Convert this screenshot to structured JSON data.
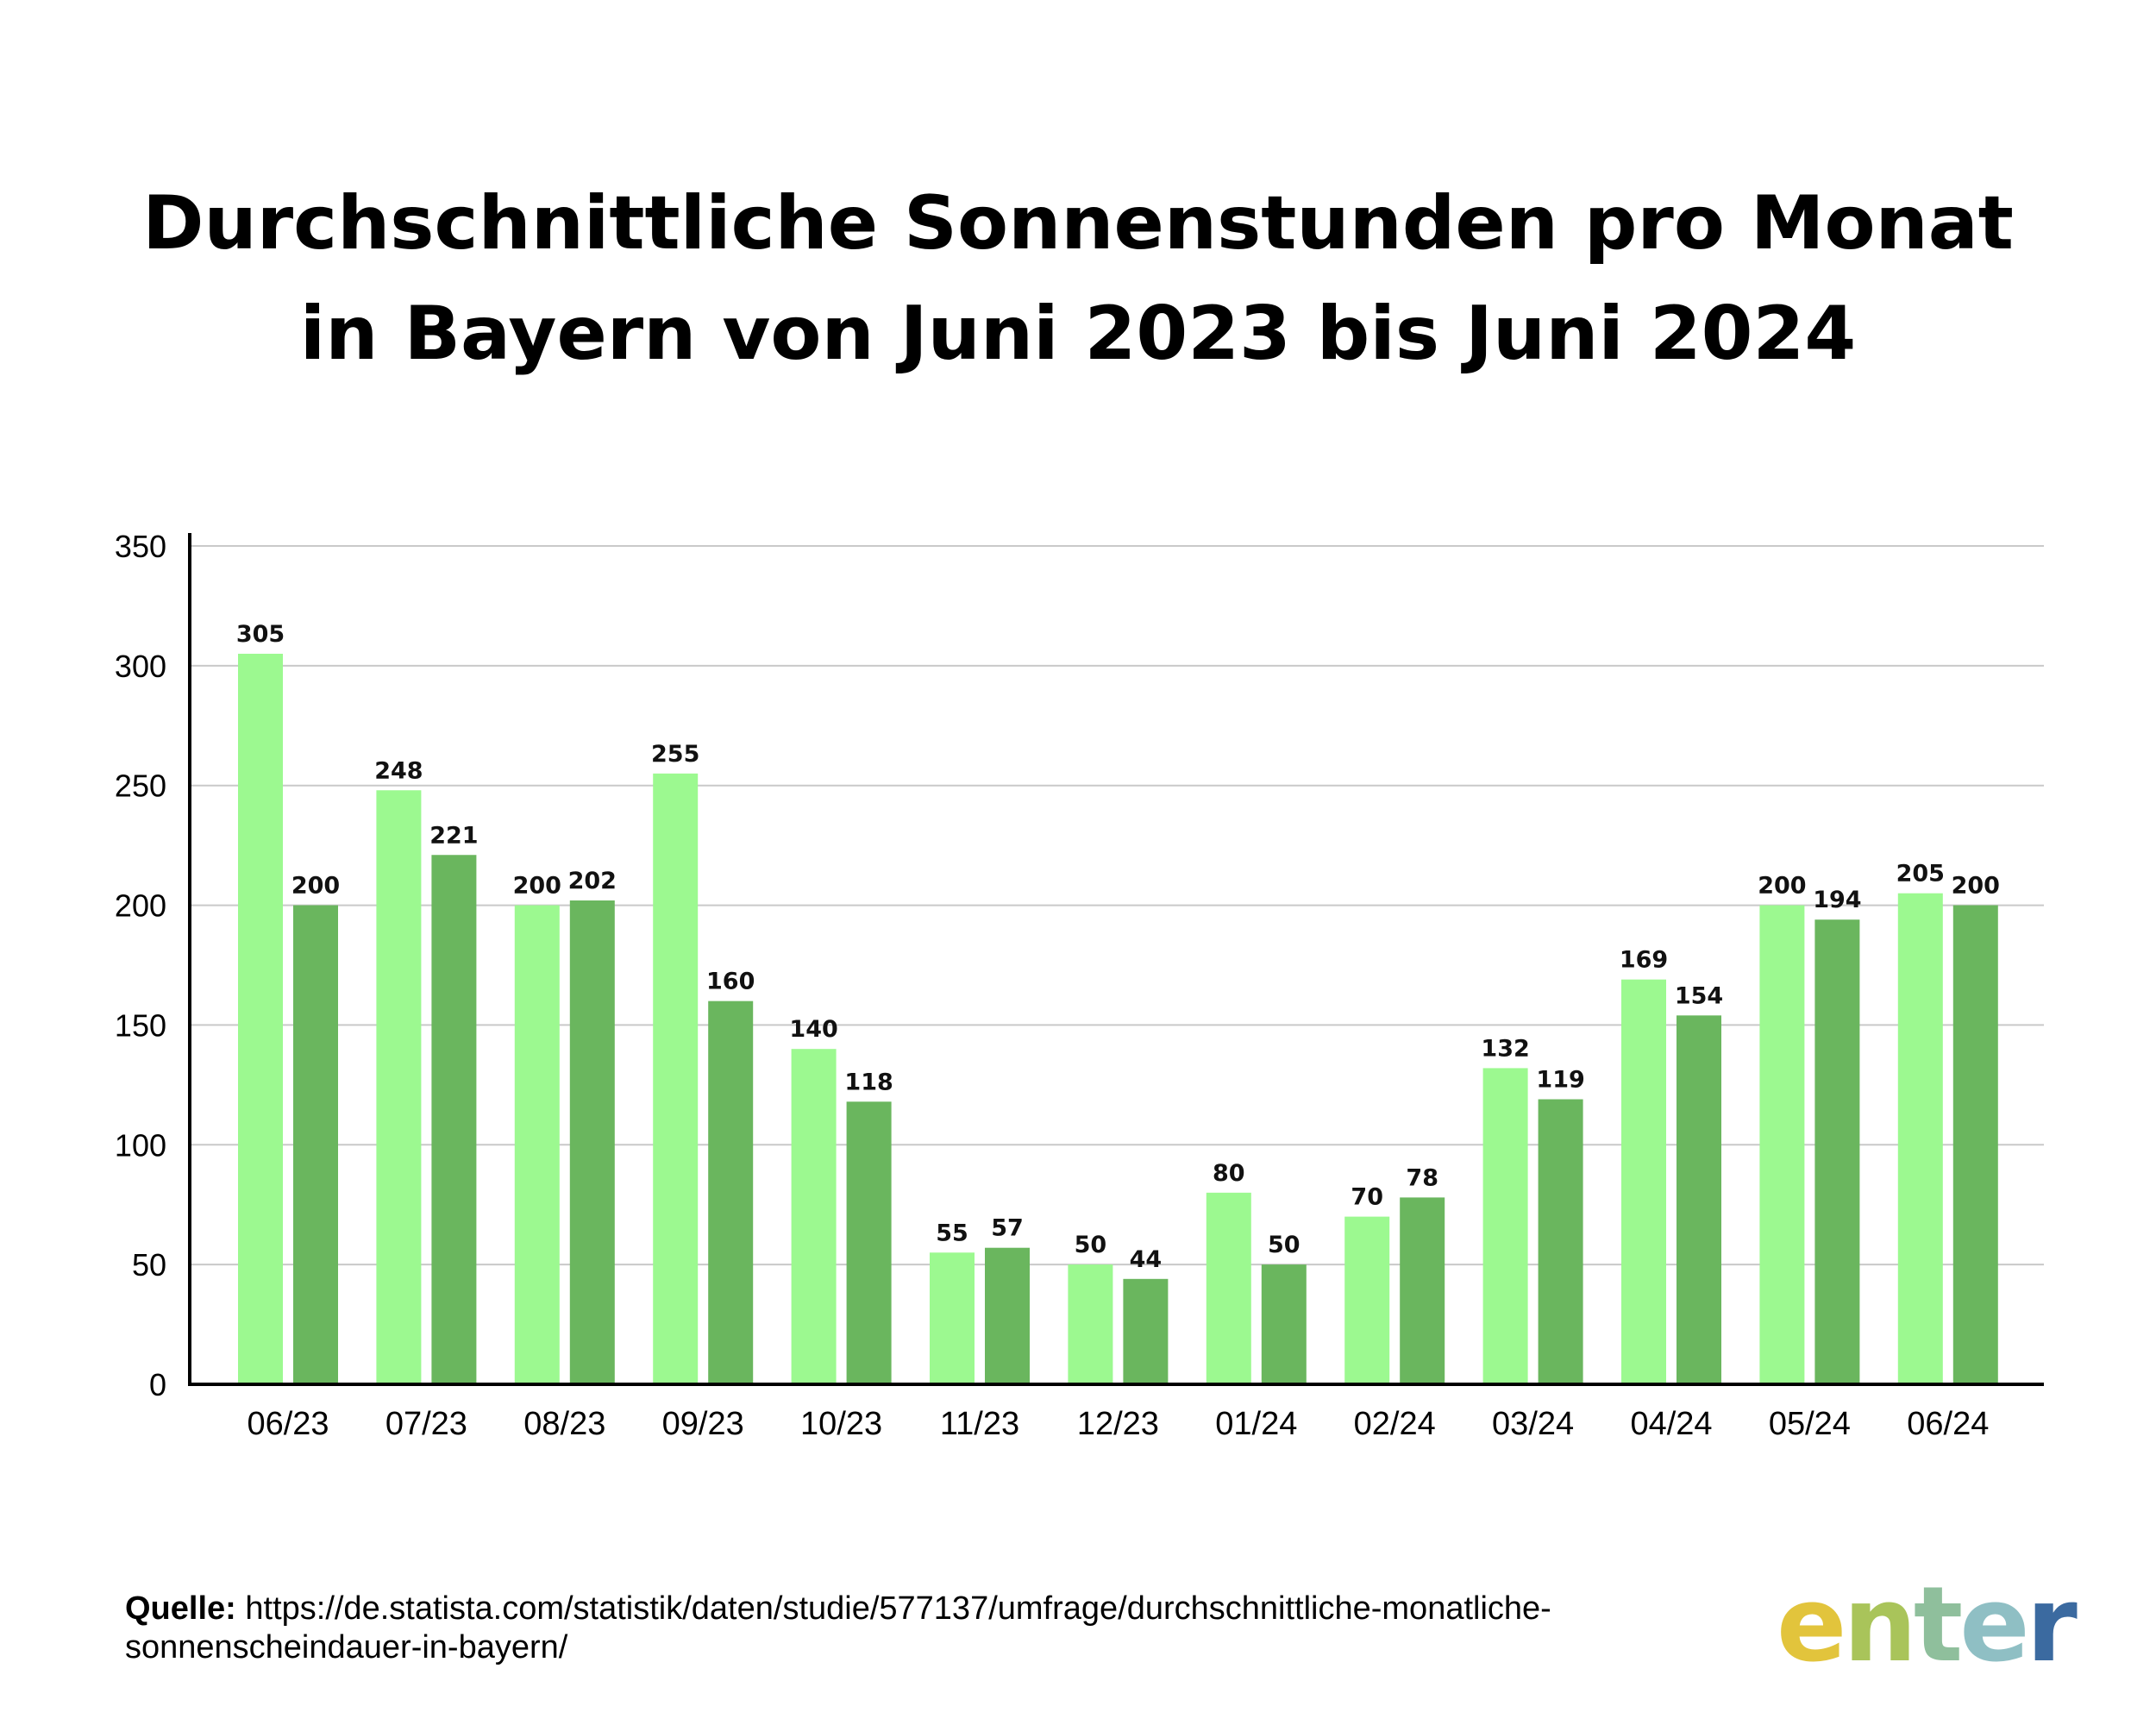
{
  "title": {
    "line1": "Durchschnittliche Sonnenstunden pro Monat",
    "line2": "in Bayern von Juni 2023 bis Juni 2024"
  },
  "chart_data": {
    "type": "bar",
    "categories": [
      "06/23",
      "07/23",
      "08/23",
      "09/23",
      "10/23",
      "11/23",
      "12/23",
      "01/24",
      "02/24",
      "03/24",
      "04/24",
      "05/24",
      "06/24"
    ],
    "series": [
      {
        "values": [
          305,
          248,
          200,
          255,
          140,
          55,
          50,
          80,
          70,
          132,
          169,
          200,
          205
        ],
        "color": "#9cf990"
      },
      {
        "values": [
          200,
          221,
          202,
          160,
          118,
          57,
          44,
          50,
          78,
          119,
          154,
          194,
          200
        ],
        "color": "#6ab65e"
      }
    ],
    "ylim": [
      0,
      350
    ],
    "yticks": [
      0,
      50,
      100,
      150,
      200,
      250,
      300,
      350
    ],
    "grid": true,
    "axis_color": "#000000",
    "grid_color": "#c9c9c9"
  },
  "footer": {
    "label": "Quelle:",
    "line1": "https://de.statista.com/statistik/daten/studie/577137/umfrage/durchschnittliche-monatliche-",
    "line2": "sonnenscheindauer-in-bayern/"
  },
  "logo": {
    "letters": [
      "e",
      "n",
      "t",
      "e",
      "r"
    ],
    "colors": [
      "#e2c43c",
      "#a9c45a",
      "#8fbf9c",
      "#8fbfc4",
      "#3b6aa0"
    ]
  }
}
